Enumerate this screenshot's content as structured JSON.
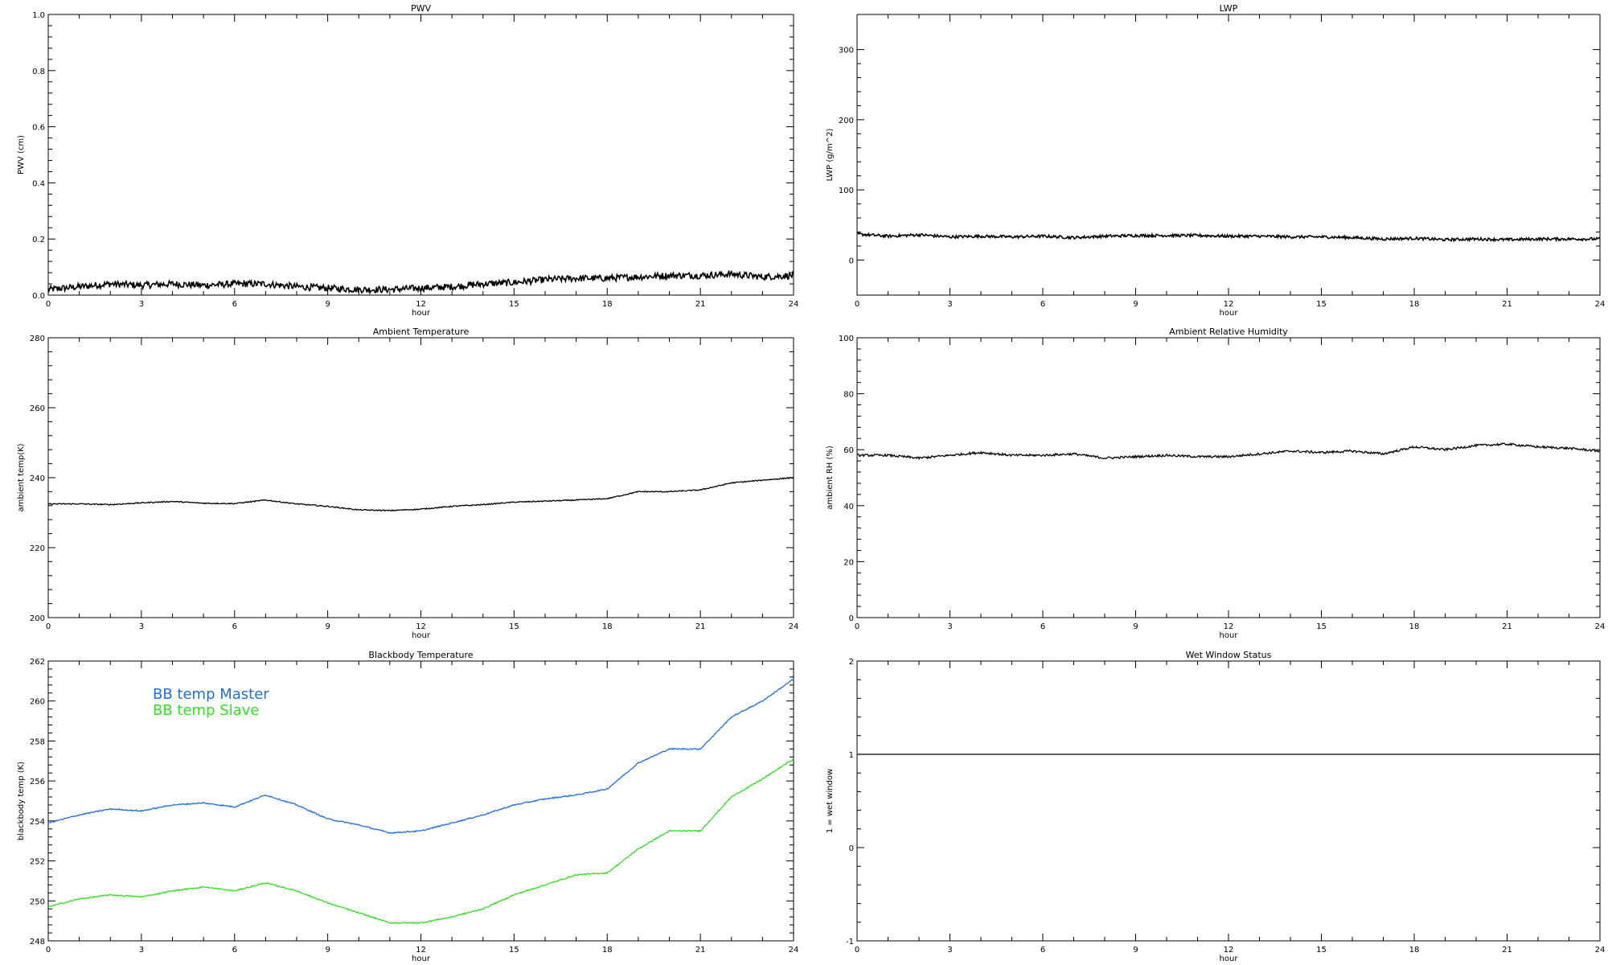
{
  "chart_data": [
    {
      "id": "pwv",
      "type": "line",
      "title": "PWV",
      "xlabel": "hour",
      "ylabel": "PWV (cm)",
      "xlim": [
        0,
        24
      ],
      "ylim": [
        0,
        1.0
      ],
      "xticks": [
        0,
        3,
        6,
        9,
        12,
        15,
        18,
        21,
        24
      ],
      "yticks": [
        0.0,
        0.2,
        0.4,
        0.6,
        0.8,
        1.0
      ],
      "ytick_labels": [
        "0.0",
        "0.2",
        "0.4",
        "0.6",
        "0.8",
        "1.0"
      ],
      "grid": false,
      "series": [
        {
          "color": "#000000",
          "noise": 0.012,
          "x": [
            0,
            1,
            2,
            3,
            4,
            5,
            6,
            7,
            8,
            9,
            10,
            11,
            12,
            13,
            14,
            15,
            16,
            17,
            18,
            19,
            20,
            21,
            22,
            23,
            24
          ],
          "y": [
            0.02,
            0.03,
            0.04,
            0.035,
            0.04,
            0.035,
            0.04,
            0.04,
            0.03,
            0.025,
            0.02,
            0.02,
            0.025,
            0.03,
            0.04,
            0.045,
            0.055,
            0.06,
            0.06,
            0.065,
            0.07,
            0.07,
            0.075,
            0.065,
            0.07
          ]
        }
      ]
    },
    {
      "id": "lwp",
      "type": "line",
      "title": "LWP",
      "xlabel": "hour",
      "ylabel": "LWP (g/m^2)",
      "xlim": [
        0,
        24
      ],
      "ylim": [
        -50,
        350
      ],
      "xticks": [
        0,
        3,
        6,
        9,
        12,
        15,
        18,
        21,
        24
      ],
      "yticks": [
        0,
        100,
        200,
        300
      ],
      "ytick_labels": [
        "0",
        "100",
        "200",
        "300"
      ],
      "grid": false,
      "series": [
        {
          "color": "#000000",
          "noise": 2.0,
          "x": [
            0,
            1,
            2,
            3,
            4,
            5,
            6,
            7,
            8,
            9,
            10,
            11,
            12,
            13,
            14,
            15,
            16,
            17,
            18,
            19,
            20,
            21,
            22,
            23,
            24
          ],
          "y": [
            37,
            34,
            36,
            33,
            34,
            33,
            34,
            32,
            34,
            35,
            35,
            35,
            34,
            34,
            33,
            33,
            32,
            30,
            31,
            29,
            30,
            29,
            30,
            30,
            30
          ]
        }
      ]
    },
    {
      "id": "ambient-temp",
      "type": "line",
      "title": "Ambient Temperature",
      "xlabel": "hour",
      "ylabel": "ambient temp(K)",
      "xlim": [
        0,
        24
      ],
      "ylim": [
        200,
        280
      ],
      "xticks": [
        0,
        3,
        6,
        9,
        12,
        15,
        18,
        21,
        24
      ],
      "yticks": [
        200,
        220,
        240,
        260,
        280
      ],
      "ytick_labels": [
        "200",
        "220",
        "240",
        "260",
        "280"
      ],
      "grid": false,
      "series": [
        {
          "color": "#000000",
          "noise": 0.15,
          "x": [
            0,
            1,
            2,
            3,
            4,
            5,
            6,
            7,
            8,
            9,
            10,
            11,
            12,
            13,
            14,
            15,
            16,
            17,
            18,
            19,
            20,
            21,
            22,
            23,
            24
          ],
          "y": [
            232.5,
            232.5,
            232.3,
            232.8,
            233.2,
            232.7,
            232.6,
            233.6,
            232.5,
            231.8,
            230.8,
            230.6,
            231.0,
            231.8,
            232.3,
            233.0,
            233.3,
            233.6,
            234.0,
            236.0,
            236.0,
            236.5,
            238.5,
            239.3,
            240.0
          ]
        }
      ]
    },
    {
      "id": "ambient-rh",
      "type": "line",
      "title": "Ambient Relative Humidity",
      "xlabel": "hour",
      "ylabel": "ambient RH (%)",
      "xlim": [
        0,
        24
      ],
      "ylim": [
        0,
        100
      ],
      "xticks": [
        0,
        3,
        6,
        9,
        12,
        15,
        18,
        21,
        24
      ],
      "yticks": [
        0,
        20,
        40,
        60,
        80,
        100
      ],
      "ytick_labels": [
        "0",
        "20",
        "40",
        "60",
        "80",
        "100"
      ],
      "grid": false,
      "series": [
        {
          "color": "#000000",
          "noise": 0.4,
          "x": [
            0,
            1,
            2,
            3,
            4,
            5,
            6,
            7,
            8,
            9,
            10,
            11,
            12,
            13,
            14,
            15,
            16,
            17,
            18,
            19,
            20,
            21,
            22,
            23,
            24
          ],
          "y": [
            58,
            58,
            57,
            58,
            59,
            58,
            58,
            58.5,
            57,
            57.5,
            58,
            57.5,
            57.5,
            58.5,
            59.5,
            59,
            59.5,
            58.5,
            61,
            60,
            61.5,
            62,
            61,
            60.5,
            59.5
          ]
        }
      ]
    },
    {
      "id": "blackbody-temp",
      "type": "line",
      "title": "Blackbody Temperature",
      "xlabel": "hour",
      "ylabel": "blackbody temp (K)",
      "xlim": [
        0,
        24
      ],
      "ylim": [
        248,
        262
      ],
      "xticks": [
        0,
        3,
        6,
        9,
        12,
        15,
        18,
        21,
        24
      ],
      "yticks": [
        248,
        250,
        252,
        254,
        256,
        258,
        260,
        262
      ],
      "ytick_labels": [
        "248",
        "250",
        "252",
        "254",
        "256",
        "258",
        "260",
        "262"
      ],
      "grid": false,
      "legend": {
        "placement": "top-left",
        "entries": [
          "BB temp Master",
          "BB temp Slave"
        ]
      },
      "series": [
        {
          "name": "BB temp Master",
          "color": "#1f6fe0",
          "noise": 0.03,
          "x": [
            0,
            1,
            2,
            3,
            4,
            5,
            6,
            7,
            8,
            9,
            10,
            11,
            12,
            13,
            14,
            15,
            16,
            17,
            18,
            19,
            20,
            21,
            22,
            23,
            24
          ],
          "y": [
            253.9,
            254.3,
            254.6,
            254.5,
            254.8,
            254.9,
            254.7,
            255.3,
            254.8,
            254.1,
            253.8,
            253.4,
            253.5,
            253.9,
            254.3,
            254.8,
            255.1,
            255.3,
            255.6,
            256.9,
            257.6,
            257.6,
            259.2,
            260.0,
            261.1
          ]
        },
        {
          "name": "BB temp Slave",
          "color": "#2ee21f",
          "noise": 0.03,
          "x": [
            0,
            1,
            2,
            3,
            4,
            5,
            6,
            7,
            8,
            9,
            10,
            11,
            12,
            13,
            14,
            15,
            16,
            17,
            18,
            19,
            20,
            21,
            22,
            23,
            24
          ],
          "y": [
            249.7,
            250.1,
            250.3,
            250.2,
            250.5,
            250.7,
            250.5,
            250.9,
            250.5,
            249.9,
            249.4,
            248.9,
            248.9,
            249.2,
            249.6,
            250.3,
            250.8,
            251.3,
            251.4,
            252.6,
            253.5,
            253.5,
            255.2,
            256.1,
            257.1
          ]
        }
      ]
    },
    {
      "id": "wet-window",
      "type": "line",
      "title": "Wet Window Status",
      "xlabel": "hour",
      "ylabel": "1 = wet window",
      "xlim": [
        0,
        24
      ],
      "ylim": [
        -1,
        2
      ],
      "xticks": [
        0,
        3,
        6,
        9,
        12,
        15,
        18,
        21,
        24
      ],
      "yticks": [
        -1,
        0,
        1,
        2
      ],
      "ytick_labels": [
        "-1",
        "0",
        "1",
        "2"
      ],
      "grid": false,
      "series": [
        {
          "color": "#000000",
          "noise": 0,
          "x": [
            0,
            24
          ],
          "y": [
            1,
            1
          ]
        }
      ]
    }
  ]
}
